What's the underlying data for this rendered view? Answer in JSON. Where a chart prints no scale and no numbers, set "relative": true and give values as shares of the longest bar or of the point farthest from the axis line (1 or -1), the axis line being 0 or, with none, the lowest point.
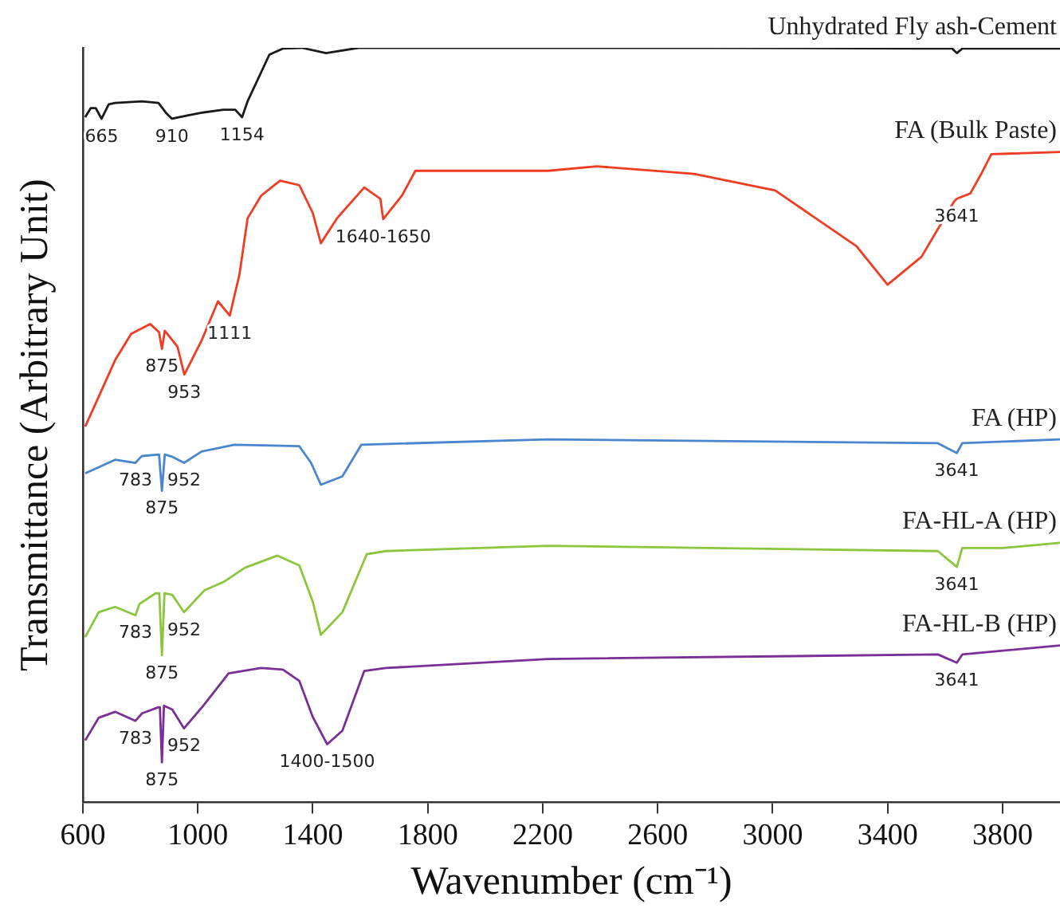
{
  "chart_data": {
    "type": "line",
    "relative": true,
    "xlabel": "Wavenumber (cm⁻¹)",
    "ylabel": "Transmittance (Arbitrary Unit)",
    "xlim": [
      600,
      4000
    ],
    "xticks": [
      600,
      1000,
      1400,
      1800,
      2200,
      2600,
      3000,
      3400,
      3800
    ],
    "grid": false,
    "legend": false,
    "marker": "none",
    "line_style": "solid",
    "series": [
      {
        "name": "Unhydrated Fly ash-Cement",
        "color": "#1a1a1a",
        "x": [
          608,
          627,
          645,
          665,
          690,
          712,
          806,
          863,
          891,
          910,
          960,
          1013,
          1089,
          1130,
          1154,
          1173,
          1249,
          1296,
          1362,
          1446,
          1559,
          2219,
          2800,
          3500,
          3625,
          3641,
          3660,
          3800,
          4000
        ],
        "values": [
          0.908,
          0.92,
          0.92,
          0.906,
          0.925,
          0.927,
          0.929,
          0.927,
          0.913,
          0.906,
          0.91,
          0.914,
          0.918,
          0.918,
          0.908,
          0.929,
          0.991,
          0.999,
          1.0,
          0.993,
          1.0,
          1.0,
          1.0,
          0.999,
          0.999,
          0.993,
          0.999,
          0.999,
          0.999
        ]
      },
      {
        "name": "FA (Bulk Paste)",
        "color": "#f03c22",
        "x": [
          608,
          665,
          712,
          768,
          834,
          865,
          875,
          885,
          929,
          953,
          1013,
          1070,
          1111,
          1145,
          1173,
          1220,
          1286,
          1353,
          1400,
          1428,
          1484,
          1579,
          1635,
          1645,
          1710,
          1757,
          2219,
          2388,
          2727,
          3009,
          3292,
          3400,
          3518,
          3631,
          3641,
          3688,
          3726,
          3761,
          4000
        ],
        "values": [
          0.498,
          0.546,
          0.586,
          0.621,
          0.634,
          0.623,
          0.601,
          0.625,
          0.604,
          0.567,
          0.612,
          0.664,
          0.645,
          0.7,
          0.774,
          0.804,
          0.824,
          0.818,
          0.781,
          0.741,
          0.774,
          0.815,
          0.8,
          0.773,
          0.804,
          0.837,
          0.837,
          0.843,
          0.833,
          0.811,
          0.737,
          0.686,
          0.723,
          0.796,
          0.8,
          0.807,
          0.833,
          0.859,
          0.862
        ]
      },
      {
        "name": "FA (HP)",
        "color": "#4a86d0",
        "x": [
          608,
          712,
          783,
          800,
          806,
          865,
          875,
          885,
          911,
          952,
          1013,
          1127,
          1353,
          1394,
          1428,
          1503,
          1569,
          2219,
          3575,
          3641,
          3660,
          4000
        ],
        "values": [
          0.436,
          0.454,
          0.45,
          0.457,
          0.459,
          0.461,
          0.413,
          0.461,
          0.458,
          0.45,
          0.465,
          0.474,
          0.472,
          0.45,
          0.421,
          0.432,
          0.474,
          0.481,
          0.476,
          0.463,
          0.476,
          0.481
        ]
      },
      {
        "name": "FA-HL-A (HP)",
        "color": "#8cc63e",
        "x": [
          608,
          655,
          712,
          783,
          797,
          853,
          866,
          875,
          884,
          911,
          952,
          1023,
          1089,
          1164,
          1277,
          1353,
          1400,
          1428,
          1503,
          1588,
          1654,
          2219,
          3575,
          3641,
          3660,
          3800,
          4000
        ],
        "values": [
          0.219,
          0.252,
          0.259,
          0.248,
          0.263,
          0.277,
          0.277,
          0.195,
          0.277,
          0.275,
          0.252,
          0.281,
          0.292,
          0.311,
          0.327,
          0.314,
          0.266,
          0.222,
          0.252,
          0.329,
          0.333,
          0.34,
          0.333,
          0.312,
          0.337,
          0.337,
          0.344
        ]
      },
      {
        "name": "FA-HL-B (HP)",
        "color": "#7a2f96",
        "x": [
          608,
          655,
          712,
          783,
          806,
          863,
          868,
          875,
          882,
          911,
          952,
          1023,
          1107,
          1220,
          1296,
          1353,
          1400,
          1450,
          1503,
          1579,
          1654,
          2219,
          3575,
          3641,
          3660,
          4000
        ],
        "values": [
          0.082,
          0.112,
          0.12,
          0.108,
          0.118,
          0.126,
          0.126,
          0.053,
          0.128,
          0.123,
          0.098,
          0.13,
          0.171,
          0.178,
          0.176,
          0.161,
          0.113,
          0.077,
          0.095,
          0.174,
          0.178,
          0.19,
          0.196,
          0.185,
          0.196,
          0.208
        ]
      }
    ],
    "annotations": [
      {
        "text": "665",
        "x": 665,
        "y": 0.906
      },
      {
        "text": "910",
        "x": 910,
        "y": 0.906
      },
      {
        "text": "1154",
        "x": 1154,
        "y": 0.908
      },
      {
        "text": "875",
        "x": 875,
        "y": 0.601
      },
      {
        "text": "953",
        "x": 953,
        "y": 0.567
      },
      {
        "text": "1111",
        "x": 1111,
        "y": 0.645
      },
      {
        "text": "1640-1650",
        "x": 1645,
        "y": 0.773
      },
      {
        "text": "3641",
        "x": 3641,
        "y": 0.8
      },
      {
        "text": "783",
        "x": 783,
        "y": 0.45
      },
      {
        "text": "875",
        "x": 875,
        "y": 0.413
      },
      {
        "text": "952",
        "x": 952,
        "y": 0.45
      },
      {
        "text": "3641",
        "x": 3641,
        "y": 0.463
      },
      {
        "text": "783",
        "x": 783,
        "y": 0.248
      },
      {
        "text": "875",
        "x": 875,
        "y": 0.195
      },
      {
        "text": "952",
        "x": 952,
        "y": 0.252
      },
      {
        "text": "3641",
        "x": 3641,
        "y": 0.312
      },
      {
        "text": "783",
        "x": 783,
        "y": 0.108
      },
      {
        "text": "875",
        "x": 875,
        "y": 0.053
      },
      {
        "text": "952",
        "x": 952,
        "y": 0.098
      },
      {
        "text": "1400-1500",
        "x": 1450,
        "y": 0.077
      },
      {
        "text": "3641",
        "x": 3641,
        "y": 0.185
      }
    ]
  }
}
